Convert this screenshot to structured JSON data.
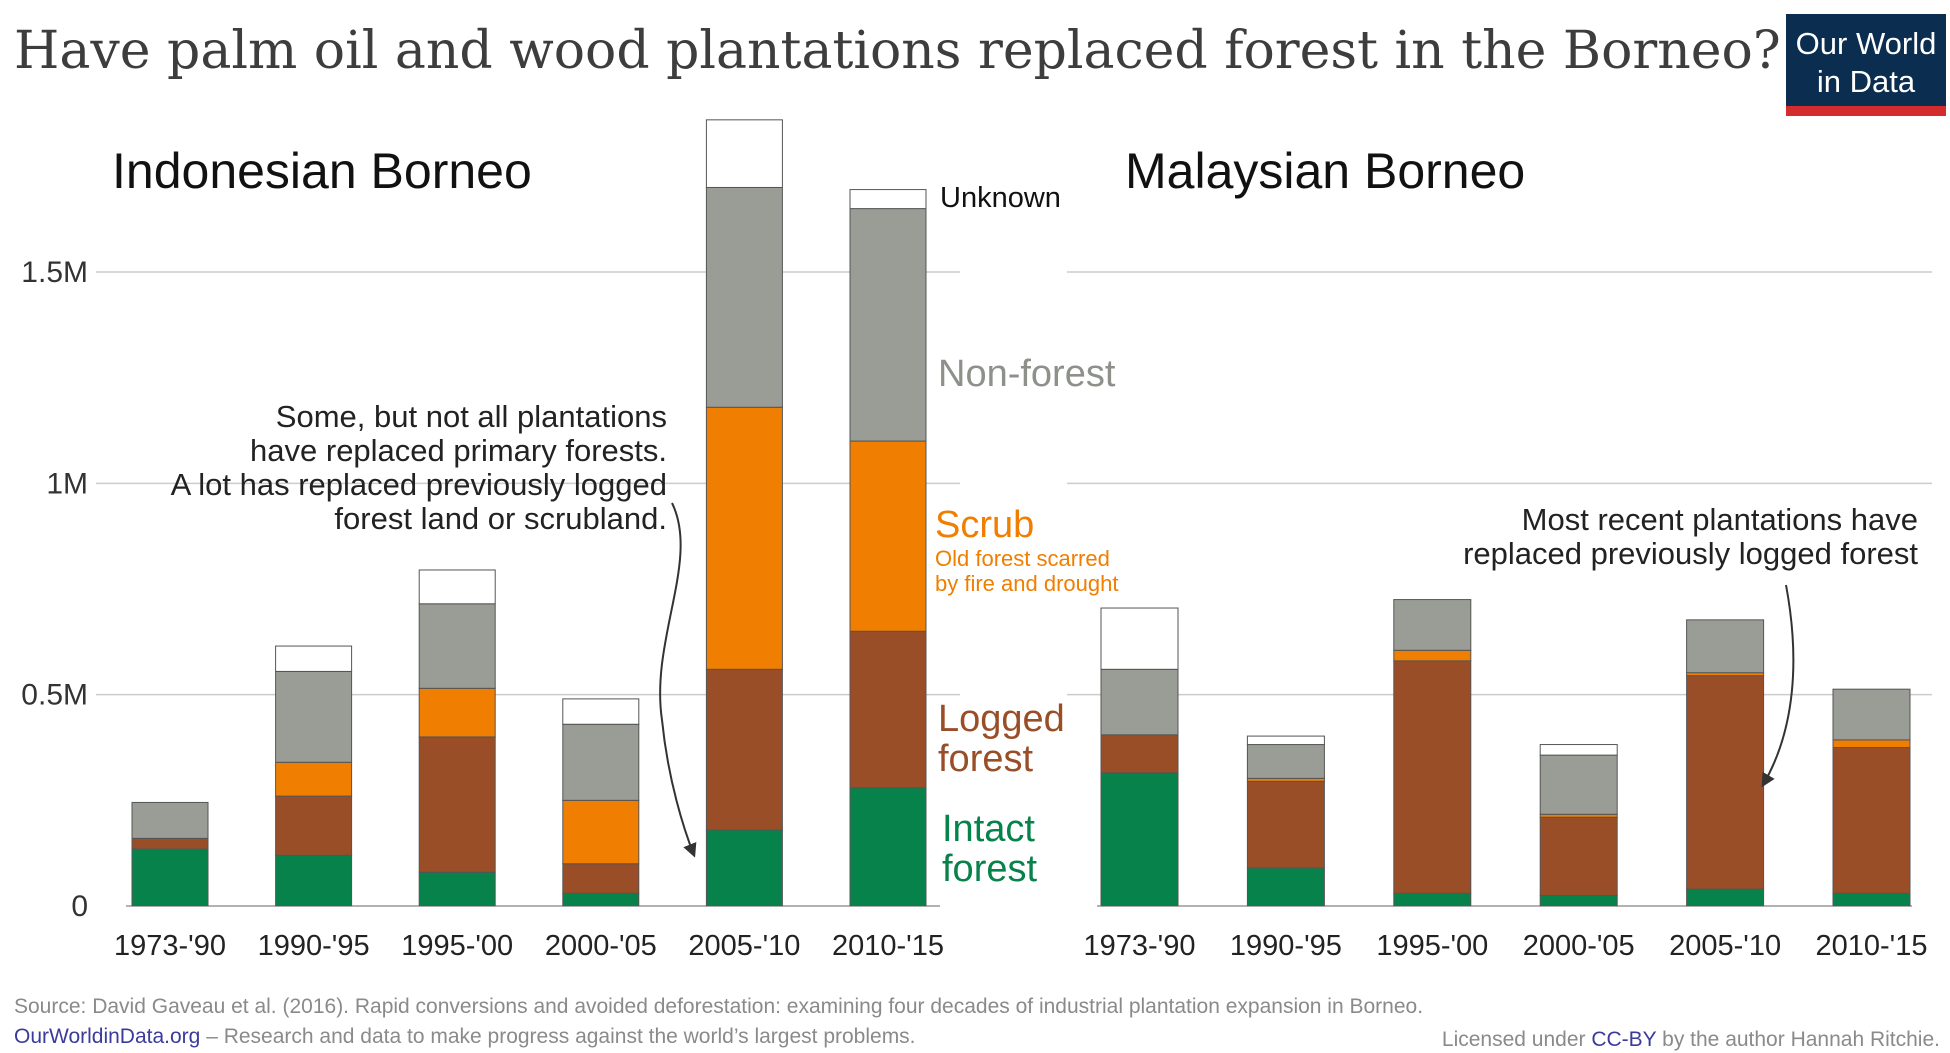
{
  "title": "Have palm oil and wood plantations replaced forest in the Borneo?",
  "logo": {
    "line1": "Our World",
    "line2": "in Data",
    "bg": "#0b2d4f",
    "stripe": "#d42c2c"
  },
  "colors": {
    "Intact forest": "#06824a",
    "Logged forest": "#9a4e27",
    "Scrub": "#f07e00",
    "Non-forest": "#999d95",
    "Unknown": "#ffffff"
  },
  "chart_data": [
    {
      "type": "bar",
      "stacked": true,
      "title": "Indonesian Borneo",
      "categories": [
        "1973-'90",
        "1990-'95",
        "1995-'00",
        "2000-'05",
        "2005-'10",
        "2010-'15"
      ],
      "yticks": [
        {
          "value": 0,
          "label": "0"
        },
        {
          "value": 500000,
          "label": "0.5M"
        },
        {
          "value": 1000000,
          "label": "1M"
        },
        {
          "value": 1500000,
          "label": "1.5M"
        }
      ],
      "ylim": [
        0,
        1850000
      ],
      "series": [
        {
          "name": "Intact forest",
          "values": [
            135000,
            120000,
            80000,
            30000,
            180000,
            280000
          ]
        },
        {
          "name": "Logged forest",
          "values": [
            25000,
            140000,
            320000,
            70000,
            380000,
            370000
          ]
        },
        {
          "name": "Scrub",
          "values": [
            0,
            80000,
            115000,
            150000,
            620000,
            450000
          ]
        },
        {
          "name": "Non-forest",
          "values": [
            85000,
            215000,
            200000,
            180000,
            520000,
            550000
          ]
        },
        {
          "name": "Unknown",
          "values": [
            0,
            60000,
            80000,
            60000,
            160000,
            45000
          ]
        }
      ],
      "annotation": [
        "Some, but not all plantations",
        "have replaced primary forests.",
        "A lot has replaced previously logged",
        "forest land or scrubland."
      ]
    },
    {
      "type": "bar",
      "stacked": true,
      "title": "Malaysian Borneo",
      "categories": [
        "1973-'90",
        "1990-'95",
        "1995-'00",
        "2000-'05",
        "2005-'10",
        "2010-'15"
      ],
      "ylim": [
        0,
        1850000
      ],
      "series": [
        {
          "name": "Intact forest",
          "values": [
            315000,
            90000,
            30000,
            25000,
            40000,
            30000
          ]
        },
        {
          "name": "Logged forest",
          "values": [
            90000,
            205000,
            550000,
            185000,
            505000,
            345000
          ]
        },
        {
          "name": "Scrub",
          "values": [
            0,
            7000,
            25000,
            7000,
            7000,
            18000
          ]
        },
        {
          "name": "Non-forest",
          "values": [
            155000,
            80000,
            120000,
            140000,
            125000,
            120000
          ]
        },
        {
          "name": "Unknown",
          "values": [
            145000,
            20000,
            0,
            25000,
            0,
            0
          ]
        }
      ],
      "annotation": [
        "Most recent plantations have",
        "replaced previously logged forest"
      ]
    }
  ],
  "legend": {
    "unknown": "Unknown",
    "nonforest": "Non-forest",
    "scrub": "Scrub",
    "scrub_note_1": "Old forest scarred",
    "scrub_note_2": "by fire and drought",
    "logged_1": "Logged",
    "logged_2": "forest",
    "intact_1": "Intact",
    "intact_2": "forest"
  },
  "footer": {
    "source": "Source: David Gaveau et al. (2016). Rapid conversions and avoided deforestation: examining four decades of industrial plantation expansion in Borneo.",
    "site": "OurWorldinData.org",
    "tagline": " – Research and data to make progress against the world’s largest problems.",
    "license_prefix": "Licensed under ",
    "license_link": "CC-BY",
    "license_suffix": " by the author Hannah Ritchie."
  }
}
